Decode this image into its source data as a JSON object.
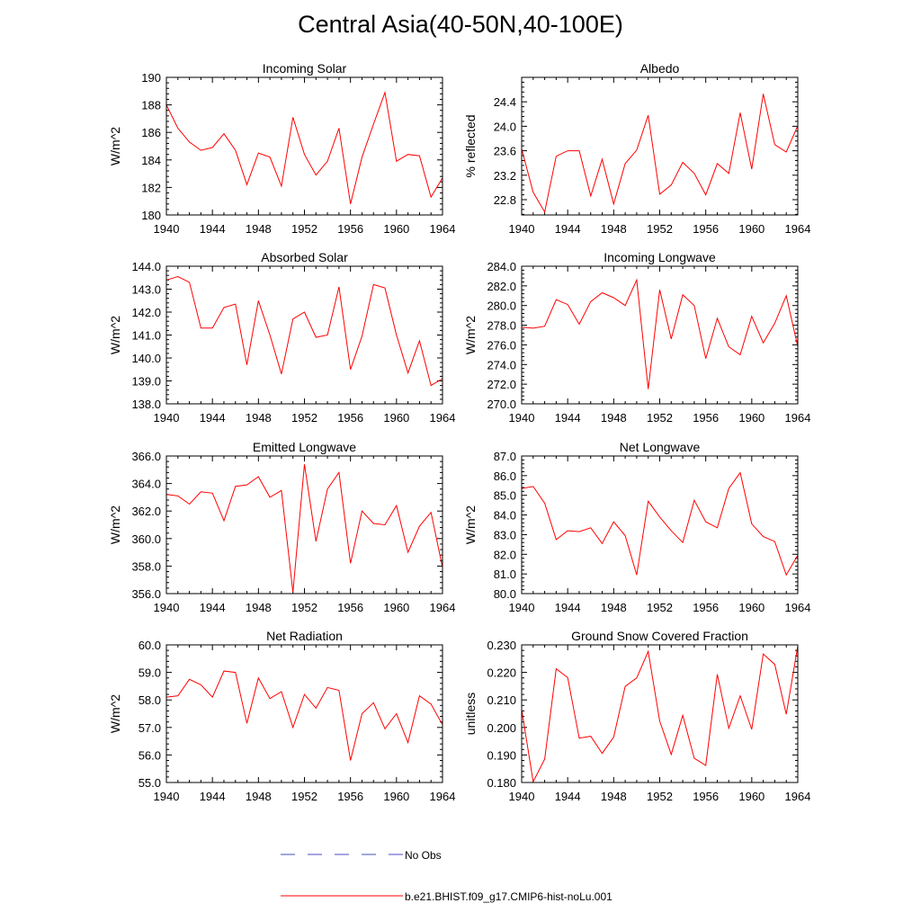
{
  "figure_title": "Central Asia(40-50N,40-100E)",
  "legend": {
    "obs_label": "No Obs",
    "obs_color": "#4a4ac8",
    "model_label": "b.e21.BHIST.f09_g17.CMIP6-hist-noLu.001",
    "model_color": "#ff0000"
  },
  "chart_data": [
    {
      "type": "line",
      "title": "Incoming Solar",
      "ylabel": "W/m^2",
      "xlim": [
        1940,
        1964
      ],
      "ylim": [
        180,
        190
      ],
      "xticks": [
        "1940",
        "1944",
        "1948",
        "1952",
        "1956",
        "1960",
        "1964"
      ],
      "yticks": [
        "180",
        "182",
        "184",
        "186",
        "188",
        "190"
      ],
      "x": [
        1940,
        1941,
        1942,
        1943,
        1944,
        1945,
        1946,
        1947,
        1948,
        1949,
        1950,
        1951,
        1952,
        1953,
        1954,
        1955,
        1956,
        1957,
        1958,
        1959,
        1960,
        1961,
        1962,
        1963,
        1964
      ],
      "series": [
        {
          "values": [
            188.0,
            186.3,
            185.3,
            184.7,
            184.9,
            185.9,
            184.7,
            182.2,
            184.5,
            184.2,
            182.1,
            187.1,
            184.4,
            182.9,
            183.9,
            186.3,
            180.8,
            184.2,
            186.6,
            188.9,
            183.9,
            184.4,
            184.3,
            181.3,
            182.7
          ]
        }
      ]
    },
    {
      "type": "line",
      "title": "Albedo",
      "ylabel": "% reflected",
      "xlim": [
        1940,
        1964
      ],
      "ylim": [
        22.55,
        24.8
      ],
      "xticks": [
        "1940",
        "1944",
        "1948",
        "1952",
        "1956",
        "1960",
        "1964"
      ],
      "yticks": [
        "22.8",
        "23.2",
        "23.6",
        "24.0",
        "24.4"
      ],
      "x": [
        1940,
        1941,
        1942,
        1943,
        1944,
        1945,
        1946,
        1947,
        1948,
        1949,
        1950,
        1951,
        1952,
        1953,
        1954,
        1955,
        1956,
        1957,
        1958,
        1959,
        1960,
        1961,
        1962,
        1963,
        1964
      ],
      "series": [
        {
          "values": [
            23.63,
            22.92,
            22.6,
            23.51,
            23.6,
            23.6,
            22.86,
            23.46,
            22.73,
            23.39,
            23.61,
            24.18,
            22.89,
            23.04,
            23.41,
            23.23,
            22.88,
            23.39,
            23.23,
            24.22,
            23.3,
            24.53,
            23.7,
            23.58,
            24.01
          ]
        }
      ]
    },
    {
      "type": "line",
      "title": "Absorbed Solar",
      "ylabel": "W/m^2",
      "xlim": [
        1940,
        1964
      ],
      "ylim": [
        138.0,
        144.0
      ],
      "xticks": [
        "1940",
        "1944",
        "1948",
        "1952",
        "1956",
        "1960",
        "1964"
      ],
      "yticks": [
        "138.0",
        "139.0",
        "140.0",
        "141.0",
        "142.0",
        "143.0",
        "144.0"
      ],
      "x": [
        1940,
        1941,
        1942,
        1943,
        1944,
        1945,
        1946,
        1947,
        1948,
        1949,
        1950,
        1951,
        1952,
        1953,
        1954,
        1955,
        1956,
        1957,
        1958,
        1959,
        1960,
        1961,
        1962,
        1963,
        1964
      ],
      "series": [
        {
          "values": [
            143.4,
            143.55,
            143.3,
            141.3,
            141.3,
            142.2,
            142.35,
            139.7,
            142.5,
            141.0,
            139.3,
            141.7,
            142.0,
            140.9,
            141.0,
            143.1,
            139.5,
            140.95,
            143.2,
            143.05,
            141.0,
            139.35,
            140.75,
            138.8,
            139.1
          ]
        }
      ]
    },
    {
      "type": "line",
      "title": "Incoming Longwave",
      "ylabel": "W/m^2",
      "xlim": [
        1940,
        1964
      ],
      "ylim": [
        270.0,
        284.0
      ],
      "xticks": [
        "1940",
        "1944",
        "1948",
        "1952",
        "1956",
        "1960",
        "1964"
      ],
      "yticks": [
        "270.0",
        "272.0",
        "274.0",
        "276.0",
        "278.0",
        "280.0",
        "282.0",
        "284.0"
      ],
      "x": [
        1940,
        1941,
        1942,
        1943,
        1944,
        1945,
        1946,
        1947,
        1948,
        1949,
        1950,
        1951,
        1952,
        1953,
        1954,
        1955,
        1956,
        1957,
        1958,
        1959,
        1960,
        1961,
        1962,
        1963,
        1964
      ],
      "series": [
        {
          "values": [
            277.8,
            277.7,
            277.9,
            280.6,
            280.1,
            278.1,
            280.4,
            281.3,
            280.8,
            280.0,
            282.6,
            271.5,
            281.6,
            276.6,
            281.1,
            280.0,
            274.6,
            278.7,
            275.8,
            275.0,
            278.9,
            276.2,
            278.2,
            281.0,
            275.8
          ]
        }
      ]
    },
    {
      "type": "line",
      "title": "Emitted Longwave",
      "ylabel": "W/m^2",
      "xlim": [
        1940,
        1964
      ],
      "ylim": [
        356.0,
        366.0
      ],
      "xticks": [
        "1940",
        "1944",
        "1948",
        "1952",
        "1956",
        "1960",
        "1964"
      ],
      "yticks": [
        "356.0",
        "358.0",
        "360.0",
        "362.0",
        "364.0",
        "366.0"
      ],
      "x": [
        1940,
        1941,
        1942,
        1943,
        1944,
        1945,
        1946,
        1947,
        1948,
        1949,
        1950,
        1951,
        1952,
        1953,
        1954,
        1955,
        1956,
        1957,
        1958,
        1959,
        1960,
        1961,
        1962,
        1963,
        1964
      ],
      "series": [
        {
          "values": [
            363.2,
            363.1,
            362.5,
            363.4,
            363.3,
            361.3,
            363.8,
            363.9,
            364.5,
            363.0,
            363.5,
            356.1,
            365.4,
            359.8,
            363.6,
            364.8,
            358.2,
            362.0,
            361.1,
            361.0,
            362.4,
            359.0,
            360.9,
            361.9,
            357.9
          ]
        }
      ]
    },
    {
      "type": "line",
      "title": "Net Longwave",
      "ylabel": "W/m^2",
      "xlim": [
        1940,
        1964
      ],
      "ylim": [
        80.0,
        87.0
      ],
      "xticks": [
        "1940",
        "1944",
        "1948",
        "1952",
        "1956",
        "1960",
        "1964"
      ],
      "yticks": [
        "80.0",
        "81.0",
        "82.0",
        "83.0",
        "84.0",
        "85.0",
        "86.0",
        "87.0"
      ],
      "x": [
        1940,
        1941,
        1942,
        1943,
        1944,
        1945,
        1946,
        1947,
        1948,
        1949,
        1950,
        1951,
        1952,
        1953,
        1954,
        1955,
        1956,
        1957,
        1958,
        1959,
        1960,
        1961,
        1962,
        1963,
        1964
      ],
      "series": [
        {
          "values": [
            85.35,
            85.45,
            84.6,
            82.75,
            83.2,
            83.15,
            83.35,
            82.55,
            83.65,
            82.95,
            80.95,
            84.7,
            83.9,
            83.2,
            82.6,
            84.75,
            83.65,
            83.35,
            85.35,
            86.15,
            83.55,
            82.9,
            82.65,
            80.95,
            81.95
          ]
        }
      ]
    },
    {
      "type": "line",
      "title": "Net Radiation",
      "ylabel": "W/m^2",
      "xlim": [
        1940,
        1964
      ],
      "ylim": [
        55.0,
        60.0
      ],
      "xticks": [
        "1940",
        "1944",
        "1948",
        "1952",
        "1956",
        "1960",
        "1964"
      ],
      "yticks": [
        "55.0",
        "56.0",
        "57.0",
        "58.0",
        "59.0",
        "60.0"
      ],
      "x": [
        1940,
        1941,
        1942,
        1943,
        1944,
        1945,
        1946,
        1947,
        1948,
        1949,
        1950,
        1951,
        1952,
        1953,
        1954,
        1955,
        1956,
        1957,
        1958,
        1959,
        1960,
        1961,
        1962,
        1963,
        1964
      ],
      "series": [
        {
          "values": [
            58.1,
            58.15,
            58.75,
            58.55,
            58.1,
            59.05,
            59.0,
            57.15,
            58.8,
            58.05,
            58.3,
            57.0,
            58.2,
            57.7,
            58.45,
            58.35,
            55.8,
            57.5,
            57.9,
            56.95,
            57.5,
            56.45,
            58.15,
            57.85,
            57.1
          ]
        }
      ]
    },
    {
      "type": "line",
      "title": "Ground Snow Covered Fraction",
      "ylabel": "unitless",
      "xlim": [
        1940,
        1964
      ],
      "ylim": [
        0.18,
        0.23
      ],
      "xticks": [
        "1940",
        "1944",
        "1948",
        "1952",
        "1956",
        "1960",
        "1964"
      ],
      "yticks": [
        "0.180",
        "0.190",
        "0.200",
        "0.210",
        "0.220",
        "0.230"
      ],
      "x": [
        1940,
        1941,
        1942,
        1943,
        1944,
        1945,
        1946,
        1947,
        1948,
        1949,
        1950,
        1951,
        1952,
        1953,
        1954,
        1955,
        1956,
        1957,
        1958,
        1959,
        1960,
        1961,
        1962,
        1963,
        1964
      ],
      "series": [
        {
          "values": [
            0.2065,
            0.1803,
            0.1885,
            0.2213,
            0.2181,
            0.1961,
            0.1968,
            0.1906,
            0.1965,
            0.2149,
            0.218,
            0.2276,
            0.2023,
            0.1902,
            0.2044,
            0.1888,
            0.1862,
            0.2193,
            0.1997,
            0.2115,
            0.1993,
            0.2267,
            0.2229,
            0.2048,
            0.2296
          ]
        }
      ]
    }
  ]
}
